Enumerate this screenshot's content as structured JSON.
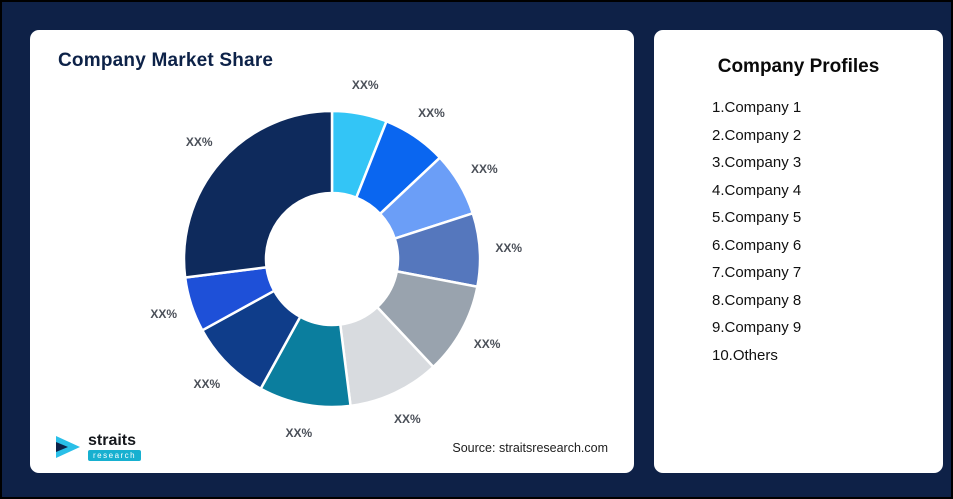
{
  "page": {
    "background_color": "#0e2147",
    "card_color": "#ffffff"
  },
  "left_card": {
    "title": "Company Market Share",
    "source": "Source: straitsresearch.com",
    "logo_name": "straits",
    "logo_sub": "research"
  },
  "right_card": {
    "title": "Company Profiles",
    "items": [
      "1.Company 1",
      "2.Company 2",
      "3.Company 3",
      "4.Company 4",
      "5.Company 5",
      "6.Company 6",
      "7.Company 7",
      "8.Company 8",
      "9.Company 9",
      "10.Others"
    ]
  },
  "chart_data": {
    "type": "pie",
    "variant": "donut",
    "title": "Company Market Share",
    "labels": [
      "XX%",
      "XX%",
      "XX%",
      "XX%",
      "XX%",
      "XX%",
      "XX%",
      "XX%",
      "XX%",
      "XX%"
    ],
    "values": [
      6,
      7,
      7,
      8,
      10,
      10,
      10,
      9,
      6,
      27
    ],
    "colors": [
      "#33c5f6",
      "#0a66f0",
      "#6b9ef7",
      "#5577bd",
      "#99a3ae",
      "#d8dbdf",
      "#0b7e9e",
      "#0f3d8a",
      "#1e50d8",
      "#0e2a5c"
    ],
    "start_angle_deg": 0,
    "direction": "clockwise",
    "inner_radius_ratio": 0.45,
    "legend_position": "none",
    "slice_gap_color": "#ffffff"
  }
}
